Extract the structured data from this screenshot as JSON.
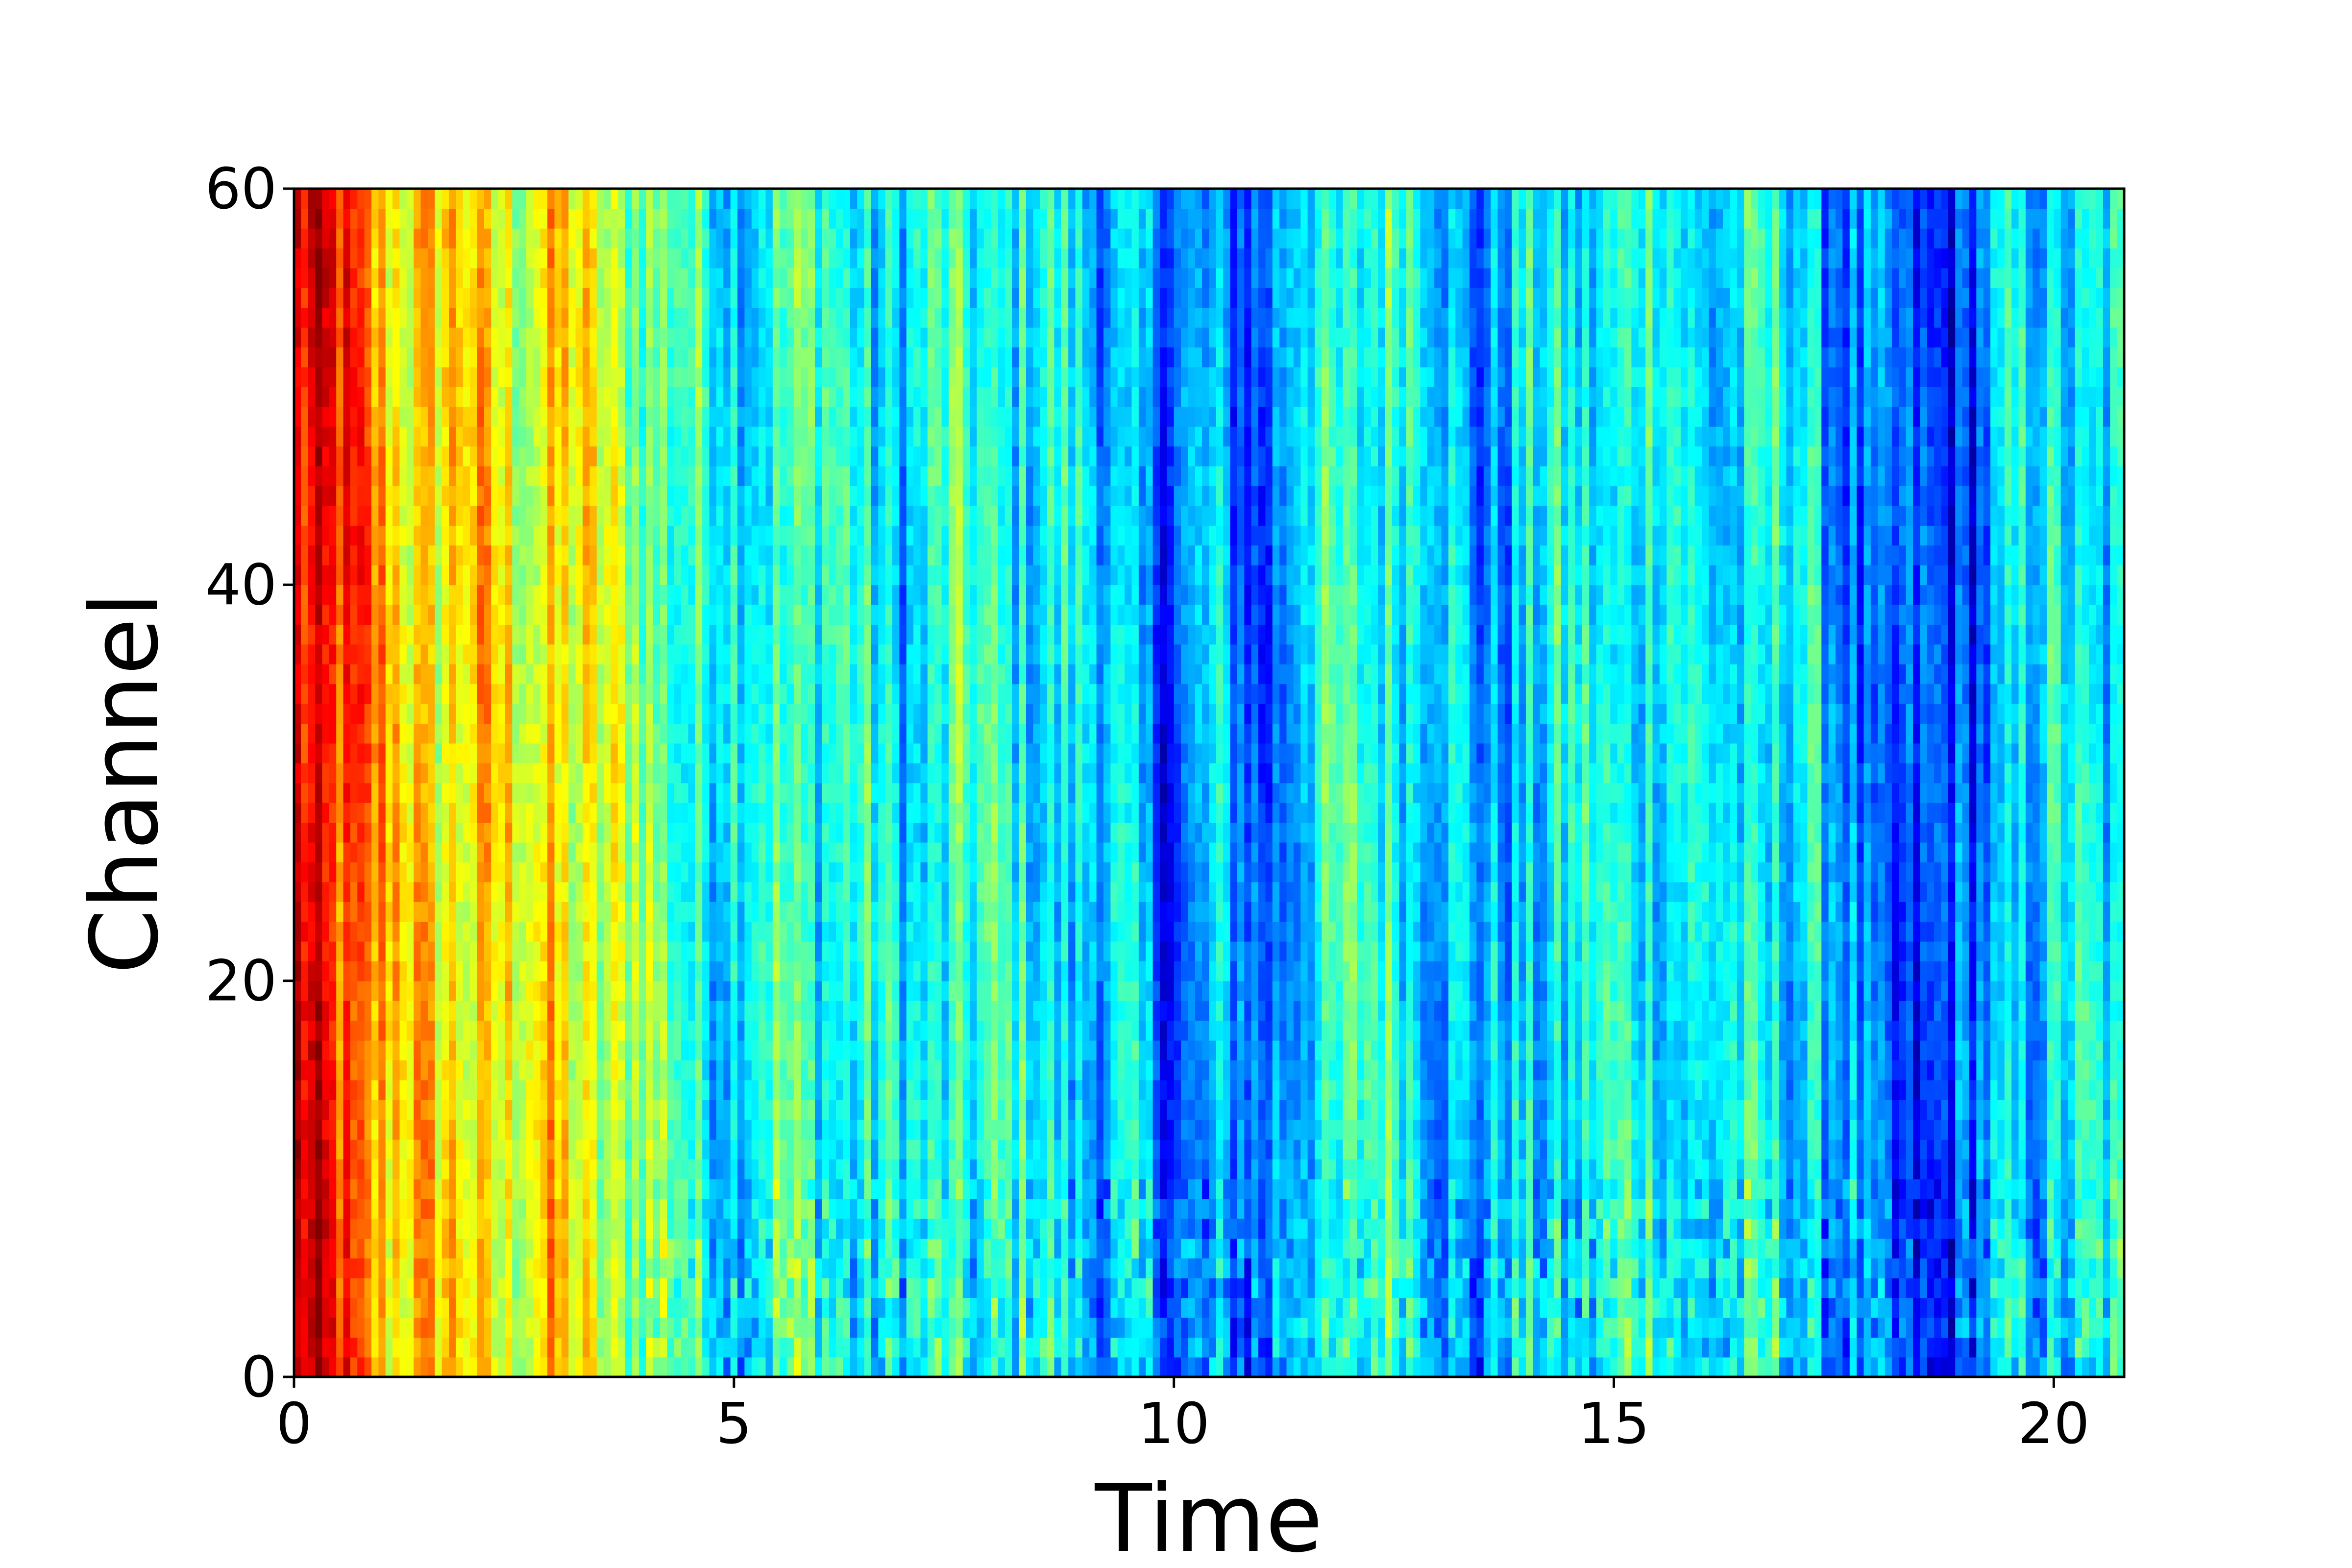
{
  "chart_data": {
    "type": "heatmap",
    "title": "",
    "xlabel": "Time",
    "ylabel": "Channel",
    "xlim": [
      0,
      20.8
    ],
    "ylim": [
      0,
      60
    ],
    "x_ticks": [
      0,
      5,
      10,
      15,
      20
    ],
    "x_tick_labels": [
      "0",
      "5",
      "10",
      "15",
      "20"
    ],
    "y_ticks": [
      0,
      20,
      40,
      60
    ],
    "y_tick_labels": [
      "0",
      "20",
      "40",
      "60"
    ],
    "colormap": "jet",
    "grid": false,
    "legend": "none",
    "value_range": [
      0,
      1
    ],
    "time_profile": [
      [
        0.0,
        0.9
      ],
      [
        0.5,
        0.82
      ],
      [
        1.0,
        0.7
      ],
      [
        1.5,
        0.64
      ],
      [
        2.0,
        0.66
      ],
      [
        2.5,
        0.6
      ],
      [
        3.0,
        0.64
      ],
      [
        3.5,
        0.56
      ],
      [
        4.0,
        0.52
      ],
      [
        4.5,
        0.42
      ],
      [
        5.0,
        0.38
      ],
      [
        5.5,
        0.44
      ],
      [
        6.0,
        0.42
      ],
      [
        6.5,
        0.38
      ],
      [
        7.0,
        0.34
      ],
      [
        7.5,
        0.42
      ],
      [
        8.0,
        0.4
      ],
      [
        8.5,
        0.38
      ],
      [
        9.0,
        0.34
      ],
      [
        9.5,
        0.3
      ],
      [
        10.0,
        0.2
      ],
      [
        10.5,
        0.3
      ],
      [
        11.0,
        0.2
      ],
      [
        11.5,
        0.38
      ],
      [
        12.0,
        0.4
      ],
      [
        12.5,
        0.44
      ],
      [
        13.0,
        0.36
      ],
      [
        13.5,
        0.26
      ],
      [
        14.0,
        0.34
      ],
      [
        14.5,
        0.36
      ],
      [
        15.0,
        0.38
      ],
      [
        15.5,
        0.42
      ],
      [
        16.0,
        0.34
      ],
      [
        16.5,
        0.36
      ],
      [
        17.0,
        0.38
      ],
      [
        17.5,
        0.3
      ],
      [
        18.0,
        0.18
      ],
      [
        18.5,
        0.16
      ],
      [
        19.0,
        0.2
      ],
      [
        19.5,
        0.32
      ],
      [
        20.0,
        0.36
      ],
      [
        20.8,
        0.34
      ]
    ]
  }
}
